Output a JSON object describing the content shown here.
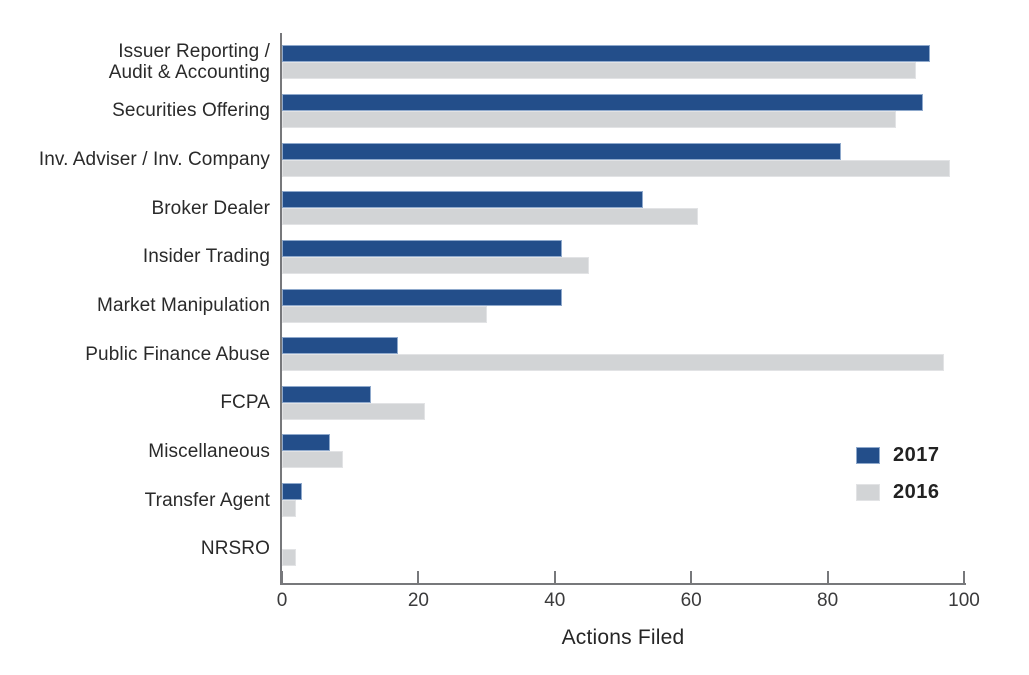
{
  "chart_data": {
    "type": "bar",
    "orientation": "horizontal",
    "xlabel": "Actions Filed",
    "xlim": [
      0,
      100
    ],
    "xticks": [
      0,
      20,
      40,
      60,
      80,
      100
    ],
    "grid": false,
    "legend_position": "inside-right",
    "categories": [
      "Issuer Reporting /\nAudit & Accounting",
      "Securities Offering",
      "Inv. Adviser / Inv. Company",
      "Broker Dealer",
      "Insider Trading",
      "Market Manipulation",
      "Public Finance Abuse",
      "FCPA",
      "Miscellaneous",
      "Transfer Agent",
      "NRSRO"
    ],
    "series": [
      {
        "name": "2017",
        "color": "#234e8a",
        "border_color": "#8fa9cc",
        "values": [
          95,
          94,
          82,
          53,
          41,
          41,
          17,
          13,
          7,
          3,
          0
        ]
      },
      {
        "name": "2016",
        "color": "#d2d4d6",
        "border_color": "#e2e3e5",
        "values": [
          93,
          90,
          98,
          61,
          45,
          30,
          97,
          21,
          9,
          2,
          2
        ]
      }
    ]
  },
  "colors": {
    "axis": "#77787b",
    "tick_label": "#3b3b3c",
    "category_label": "#2a2a2a",
    "background": "#ffffff"
  }
}
